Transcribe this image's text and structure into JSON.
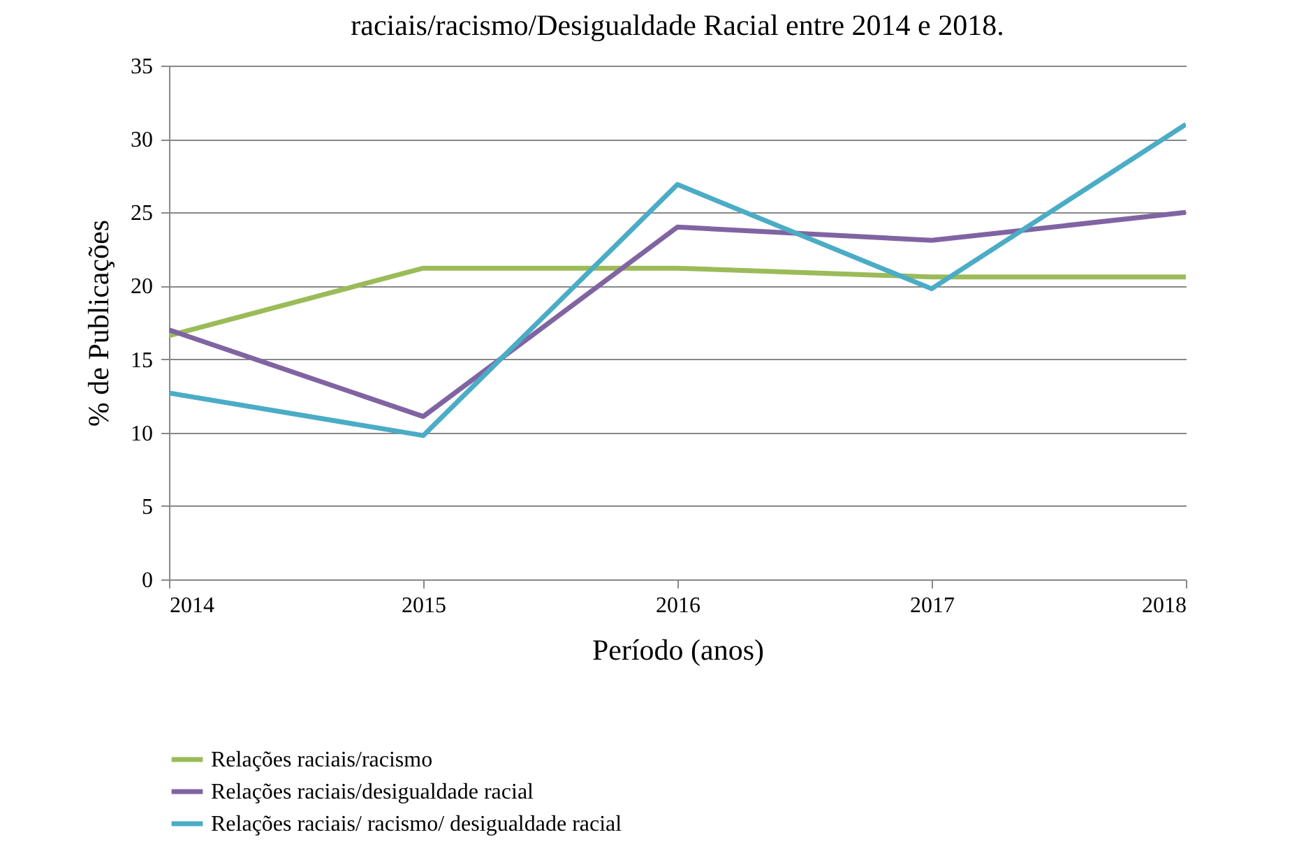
{
  "chart_data": {
    "type": "line",
    "title": "raciais/racismo/Desigualdade Racial entre 2014 e 2018.",
    "xlabel": "Período (anos)",
    "ylabel": "% de Publicações",
    "x": [
      2014,
      2015,
      2016,
      2017,
      2018
    ],
    "xlim": [
      2014,
      2018
    ],
    "xticks": [
      2014,
      2015,
      2016,
      2017,
      2018
    ],
    "ylim": [
      0,
      35
    ],
    "yticks": [
      0,
      5,
      10,
      15,
      20,
      25,
      30,
      35
    ],
    "grid": "y",
    "legend": "bottom",
    "marker": "none",
    "line_style": "solid",
    "series": [
      {
        "name": "Relações raciais/racismo",
        "color": "#9bbb59",
        "values": [
          16.6,
          21.2,
          21.2,
          20.6,
          20.6
        ]
      },
      {
        "name": "Relações raciais/desigualdade racial",
        "color": "#8064a2",
        "values": [
          17.0,
          11.1,
          24.0,
          23.1,
          25.0
        ]
      },
      {
        "name": "Relações raciais/ racismo/ desigualdade racial",
        "color": "#4bacc6",
        "values": [
          12.7,
          9.8,
          26.9,
          19.8,
          31.0
        ]
      }
    ]
  }
}
